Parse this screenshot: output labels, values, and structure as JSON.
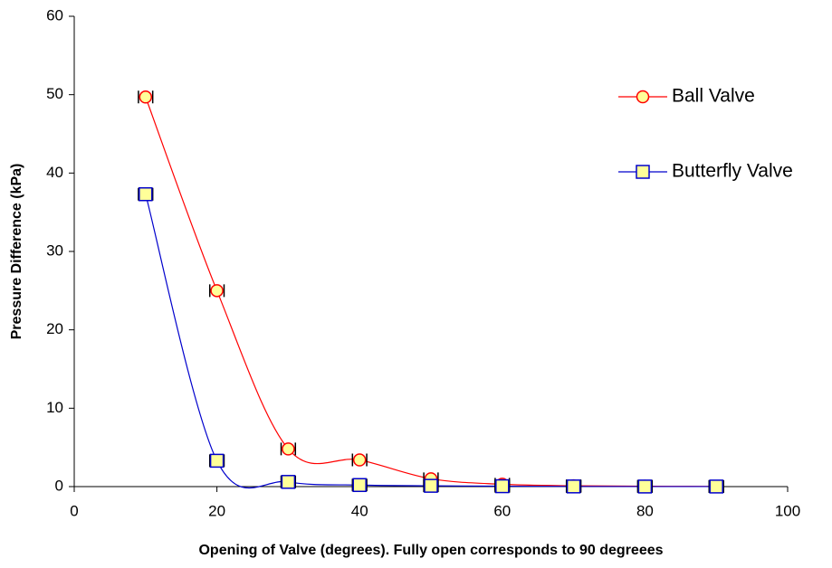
{
  "chart_data": {
    "type": "line",
    "x_label": "Opening of Valve (degrees). Fully open corresponds to 90 degreees",
    "y_label": "Pressure Difference (kPa)",
    "x": [
      10,
      20,
      30,
      40,
      50,
      60,
      70,
      80,
      90
    ],
    "series": [
      {
        "name": "Ball Valve",
        "color": "#ff0000",
        "marker": "circle",
        "marker_fill": "#ffff99",
        "values": [
          49.7,
          25,
          4.8,
          3.4,
          1.0,
          0.3,
          0.1,
          0.05,
          0.02
        ],
        "xerr": [
          1,
          1,
          1,
          1,
          1,
          1,
          1,
          1,
          1
        ]
      },
      {
        "name": "Butterfly Valve",
        "color": "#0000cc",
        "marker": "square",
        "marker_fill": "#ffff99",
        "values": [
          37.3,
          3.3,
          0.6,
          0.2,
          0.1,
          0.05,
          0.02,
          0.01,
          0.01
        ],
        "xerr": [
          1,
          1,
          1,
          1,
          1,
          1,
          1,
          1,
          1
        ]
      }
    ],
    "xlim": [
      0,
      100
    ],
    "xticks": [
      0,
      20,
      40,
      60,
      80,
      100
    ],
    "ylim": [
      0,
      60
    ],
    "yticks": [
      0,
      10,
      20,
      30,
      40,
      50,
      60
    ],
    "grid": false,
    "legend": "right",
    "smooth": true
  }
}
